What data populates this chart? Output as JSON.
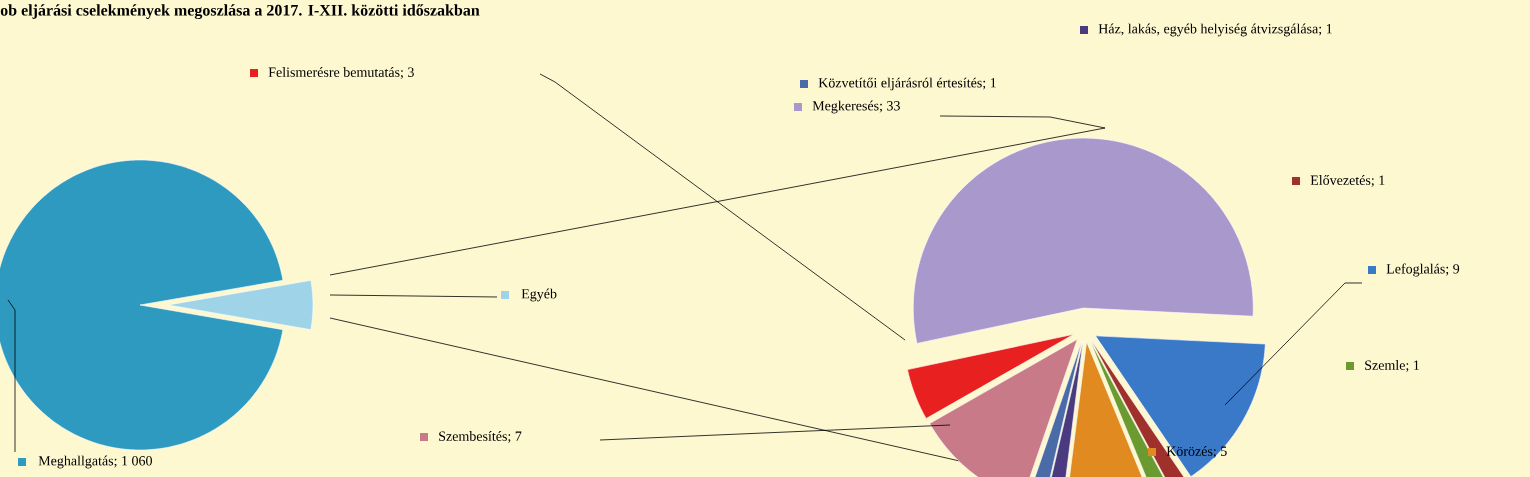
{
  "chart_data": [
    {
      "type": "pie",
      "title": "ob eljárási cselekmények megoszlása a 2017. I-XII. közötti időszakban",
      "categories": [
        "Meghallgatás; 1 060",
        "Egyéb"
      ],
      "values": [
        1060,
        61
      ],
      "colors": [
        "#2e9ac0",
        "#9fd4e8"
      ],
      "legend": "bottom right"
    },
    {
      "type": "pie",
      "categories": [
        "Megkeresés; 33",
        "Lefoglalás; 9",
        "Elővezetés; 1",
        "Szemle; 1",
        "Körözés; 5",
        "Ház, lakás, egyéb helyiség átvizsgálása; 1",
        "Közvetítői eljárásról értesítés; 1",
        "Szembesítés; 7",
        "Felismerésre bemutatás; 3"
      ],
      "values": [
        33,
        9,
        1,
        1,
        5,
        1,
        1,
        7,
        3
      ],
      "colors": [
        "#a898cc",
        "#3a78c8",
        "#a0302c",
        "#6a9a30",
        "#e08a20",
        "#4a3a80",
        "#4a6aa8",
        "#c87a88",
        "#e82020"
      ],
      "legend": "top left"
    }
  ]
}
